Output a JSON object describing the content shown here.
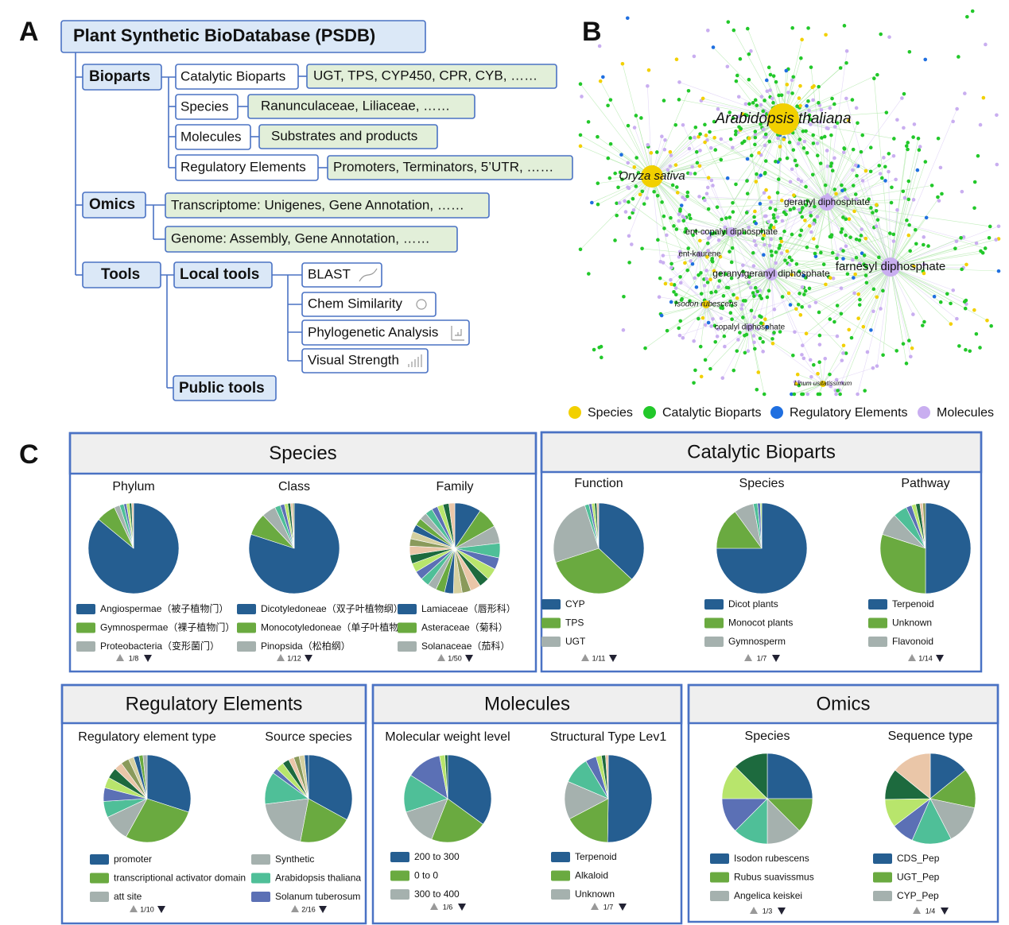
{
  "panel_labels": [
    "A",
    "B",
    "C"
  ],
  "panel_a": {
    "root": "Plant Synthetic BioDatabase (PSDB)",
    "bioparts": {
      "label": "Bioparts",
      "items": [
        [
          "Catalytic Bioparts",
          "UGT, TPS, CYP450, CPR, CYB, ……"
        ],
        [
          "Species",
          "Ranunculaceae, Liliaceae, ……"
        ],
        [
          "Molecules",
          "Substrates and products"
        ],
        [
          "Regulatory Elements",
          "Promoters, Terminators, 5’UTR, ……"
        ]
      ]
    },
    "omics": {
      "label": "Omics",
      "items": [
        "Transcriptome: Unigenes, Gene Annotation, ……",
        "Genome: Assembly, Gene Annotation, ……"
      ]
    },
    "tools": {
      "label": "Tools",
      "local": "Local tools",
      "local_items": [
        "BLAST",
        "Chem Similarity",
        "Phylogenetic Analysis",
        "Visual Strength"
      ],
      "public": "Public tools"
    }
  },
  "panel_b": {
    "labels": [
      "Arabidopsis thaliana",
      "Oryza sativa",
      "geranyl diphosphate",
      "ent-copalyl diphosphate",
      "ent-kaurene",
      "geranylgeranyl diphosphate",
      "farnesyl diphosphate",
      "Isodon rubescens",
      "copalyl diphosphate",
      "Linum usitatissimum"
    ],
    "legend": [
      {
        "name": "Species",
        "color": "#f2d000"
      },
      {
        "name": "Catalytic Bioparts",
        "color": "#22c82a"
      },
      {
        "name": "Regulatory Elements",
        "color": "#1f6fe0"
      },
      {
        "name": "Molecules",
        "color": "#c9aef0"
      }
    ]
  },
  "palette": [
    "#255e91",
    "#6aaa40",
    "#a5b1ae",
    "#4fbf98",
    "#5b70b5",
    "#b8e56c",
    "#1d6a3e",
    "#eac6a8",
    "#8a9a5b",
    "#d5d0a0"
  ],
  "panels": [
    {
      "title": "Species",
      "charts": [
        {
          "type": "pie",
          "title": "Phylum",
          "categories": [
            "Angiospermae（被子植物门）",
            "Gymnospermae（裸子植物门）",
            "Proteobacteria（变形菌门）",
            null,
            null,
            null,
            null,
            null
          ],
          "values": [
            86,
            7,
            2,
            1.5,
            1,
            1,
            0.8,
            0.7
          ],
          "page": "1/8"
        },
        {
          "type": "pie",
          "title": "Class",
          "categories": [
            "Dicotyledoneae（双子叶植物纲）",
            "Monocotyledoneae（单子叶植物纲）",
            "Pinopsida（松柏纲）",
            null,
            null,
            null,
            null,
            null,
            null
          ],
          "values": [
            80,
            8,
            5,
            2,
            1.5,
            1.2,
            1,
            0.8,
            0.5
          ],
          "page": "1/12"
        },
        {
          "type": "pie",
          "title": "Family",
          "categories": [
            "Lamiaceae（唇形科）",
            "Asteraceae（菊科）",
            "Solanaceae（茄科）",
            null,
            null,
            null,
            null,
            null,
            null,
            null,
            null,
            null,
            null,
            null,
            null,
            null,
            null,
            null,
            null,
            null,
            null,
            null,
            null,
            null,
            null,
            null,
            null,
            null
          ],
          "values": [
            9,
            7,
            6,
            5,
            4,
            4,
            3.5,
            3.5,
            3,
            3,
            3,
            3,
            3,
            3,
            3,
            3,
            3,
            3,
            2.5,
            2.5,
            2.5,
            2.5,
            2.5,
            2.5,
            2,
            2,
            2,
            2
          ],
          "page": "1/50"
        }
      ]
    },
    {
      "title": "Catalytic Bioparts",
      "charts": [
        {
          "type": "pie",
          "title": "Function",
          "categories": [
            "CYP",
            "TPS",
            "UGT",
            null,
            null,
            null,
            null,
            null
          ],
          "values": [
            37,
            33,
            25,
            1.5,
            1,
            1,
            0.8,
            0.7
          ],
          "page": "1/11"
        },
        {
          "type": "pie",
          "title": "Species",
          "categories": [
            "Dicot plants",
            "Monocot plants",
            "Gymnosperm",
            null,
            null,
            null
          ],
          "values": [
            75,
            15,
            7,
            1.5,
            1,
            0.5
          ],
          "page": "1/7"
        },
        {
          "type": "pie",
          "title": "Pathway",
          "categories": [
            "Terpenoid",
            "Unknown",
            "Flavonoid",
            null,
            null,
            null,
            null,
            null,
            null
          ],
          "values": [
            50,
            30,
            8,
            5,
            2,
            1.5,
            1.5,
            1,
            1
          ],
          "page": "1/14"
        }
      ]
    },
    {
      "title": "Regulatory Elements",
      "charts": [
        {
          "type": "pie",
          "title": "Regulatory element type",
          "categories": [
            "promoter",
            "transcriptional activator domain",
            "att site",
            null,
            null,
            null,
            null,
            null,
            null,
            null,
            null,
            null,
            null
          ],
          "values": [
            30,
            28,
            10,
            6,
            5,
            4,
            4,
            3,
            3,
            2,
            2,
            1.5,
            1.5
          ],
          "page": "1/10"
        },
        {
          "type": "pie",
          "title": "Source species",
          "categories": [
            null,
            null,
            "Synthetic",
            "Arabidopsis thaliana",
            "Solanum tuberosum",
            null,
            null,
            null,
            null,
            null,
            null
          ],
          "values": [
            33,
            20,
            20,
            12,
            2,
            3,
            2.5,
            2,
            2,
            2,
            1.5
          ],
          "page": "2/16"
        }
      ]
    },
    {
      "title": "Molecules",
      "charts": [
        {
          "type": "pie",
          "title": "Molecular weight level",
          "categories": [
            "200 to 300",
            "0 to 0",
            "300 to 400",
            null,
            null,
            null,
            null
          ],
          "values": [
            35,
            21,
            14,
            14,
            13,
            2,
            1
          ],
          "page": "1/6"
        },
        {
          "type": "pie",
          "title": "Structural Type Lev1",
          "categories": [
            "Terpenoid",
            "Alkaloid",
            "Unknown",
            null,
            null,
            null,
            null,
            null
          ],
          "values": [
            50,
            17,
            14,
            10,
            4,
            2,
            1.5,
            1
          ],
          "page": "1/7"
        }
      ]
    },
    {
      "title": "Omics",
      "charts": [
        {
          "type": "pie",
          "title": "Species",
          "categories": [
            "Isodon rubescens",
            "Rubus suavissmus",
            "Angelica keiskei",
            null,
            null,
            null,
            null
          ],
          "values": [
            25,
            12.5,
            12.5,
            12.5,
            12.5,
            12.5,
            12.5
          ],
          "page": "1/3"
        },
        {
          "type": "pie",
          "title": "Sequence type",
          "categories": [
            "CDS_Pep",
            "UGT_Pep",
            "CYP_Pep",
            null,
            null,
            null,
            null,
            null
          ],
          "values": [
            14,
            14,
            14,
            14,
            8,
            10,
            11,
            14
          ],
          "page": "1/4"
        }
      ]
    }
  ]
}
